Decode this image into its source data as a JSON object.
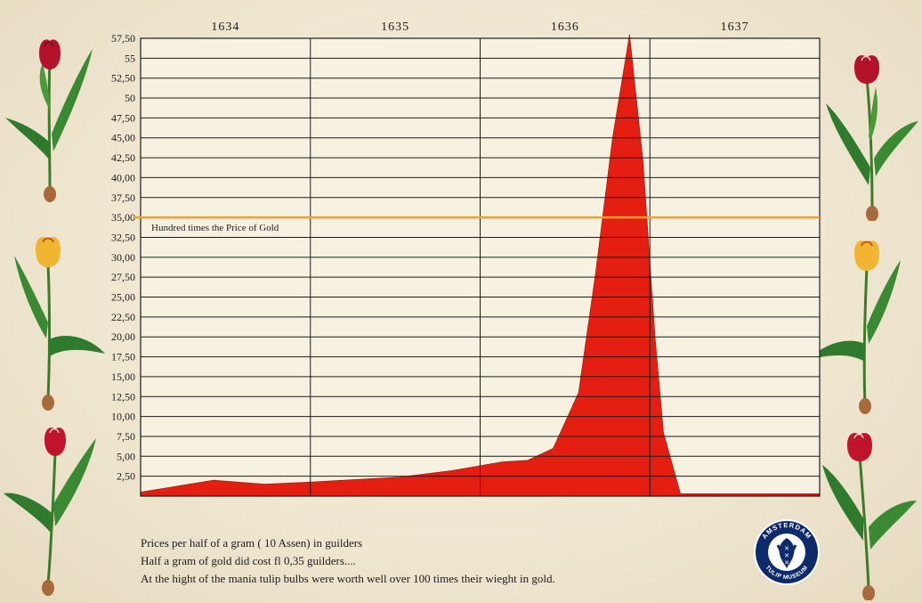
{
  "chart_data": {
    "type": "area",
    "title": "",
    "xlabel": "",
    "ylabel": "",
    "x_tick_labels": [
      "1634",
      "1635",
      "1636",
      "1637"
    ],
    "y_tick_labels": [
      "2,50",
      "5,00",
      "7,50",
      "10,00",
      "12,50",
      "15,00",
      "17,50",
      "20,00",
      "22,50",
      "25,00",
      "27,50",
      "30,00",
      "32,50",
      "35,00",
      "37,50",
      "40,00",
      "42,50",
      "45,00",
      "47,50",
      "50",
      "52,50",
      "55",
      "57,50"
    ],
    "ylim": [
      0,
      57.5
    ],
    "xlim": [
      1633.97,
      1637.97
    ],
    "grid": true,
    "series": [
      {
        "color": "#e41f12",
        "x": [
          1633.97,
          1634.4,
          1634.7,
          1635.0,
          1635.5,
          1635.8,
          1636.1,
          1636.25,
          1636.4,
          1636.55,
          1636.65,
          1636.75,
          1636.85,
          1636.93,
          1637.0,
          1637.05,
          1637.15,
          1637.97
        ],
        "y": [
          0.5,
          2.0,
          1.5,
          1.8,
          2.4,
          3.2,
          4.3,
          4.5,
          6.0,
          13.0,
          28.0,
          45.0,
          58.0,
          42.0,
          20.0,
          8.0,
          0.3,
          0.3
        ]
      }
    ],
    "reference_line": {
      "value": 35.0,
      "label": "Hundred times the Price of Gold",
      "color": "#f0a12a"
    }
  },
  "notes": [
    "Prices per half of a gram ( 10 Assen) in guilders",
    "Half a gram of gold did cost  fl 0,35 guilders....",
    "At the hight of the mania tulip bulbs were worth well over 100 times their wieght in gold."
  ],
  "logo": {
    "top_text": "AMSTERDAM",
    "bottom_text": "TULIP MUSEUM"
  },
  "colors": {
    "area": "#e41f12",
    "reference": "#f0a12a",
    "grid": "#1c1c1c",
    "logo_blue": "#0d2a6b"
  }
}
